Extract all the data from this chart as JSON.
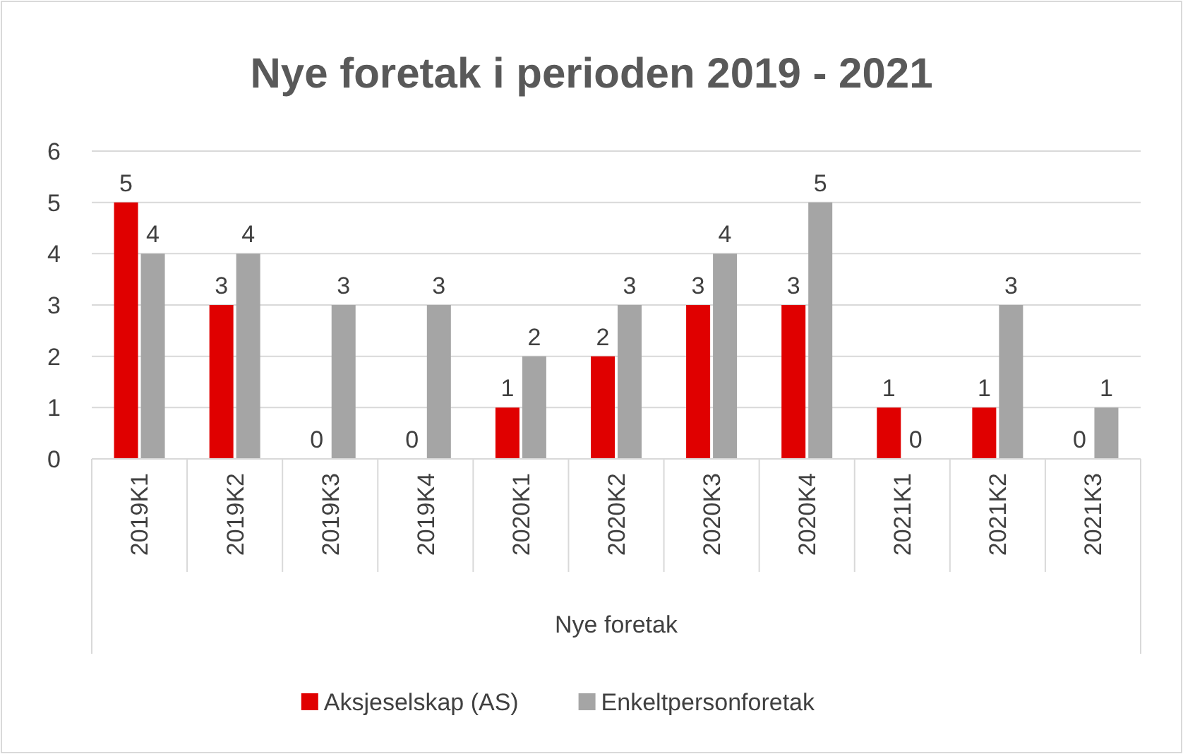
{
  "chart_data": {
    "type": "bar",
    "title": "Nye foretak i perioden 2019 - 2021",
    "xlabel": "Nye foretak",
    "categories": [
      "2019K1",
      "2019K2",
      "2019K3",
      "2019K4",
      "2020K1",
      "2020K2",
      "2020K3",
      "2020K4",
      "2021K1",
      "2021K2",
      "2021K3"
    ],
    "series": [
      {
        "name": "Aksjeselskap (AS)",
        "color": "#e00000",
        "values": [
          5,
          3,
          0,
          0,
          1,
          2,
          3,
          3,
          1,
          1,
          0
        ]
      },
      {
        "name": "Enkeltpersonforetak",
        "color": "#a5a5a5",
        "values": [
          4,
          4,
          3,
          3,
          2,
          3,
          4,
          5,
          0,
          3,
          1
        ]
      }
    ],
    "ylim": [
      0,
      6
    ],
    "yticks": [
      0,
      1,
      2,
      3,
      4,
      5,
      6
    ],
    "grid": "y",
    "data_labels": true,
    "legend": "bottom"
  }
}
